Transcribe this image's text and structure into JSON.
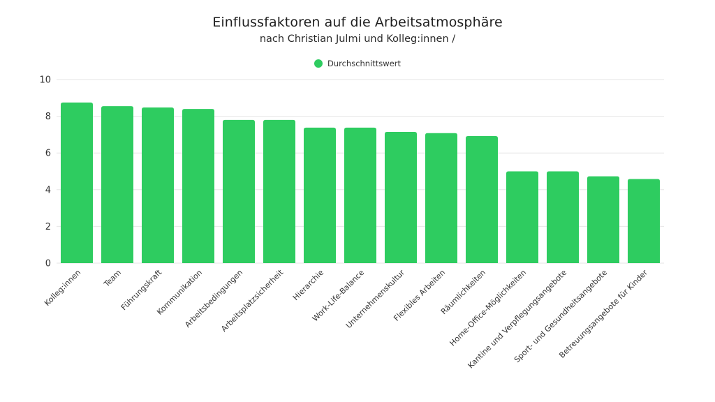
{
  "chart_data": {
    "type": "bar",
    "title": "Einflussfaktoren auf die Arbeitsatmosphäre",
    "subtitle": "nach Christian Julmi und Kolleg:innen /",
    "xlabel": "",
    "ylabel": "",
    "ylim": [
      0,
      10
    ],
    "yticks": [
      0,
      2,
      4,
      6,
      8,
      10
    ],
    "grid": true,
    "legend_position": "top-center",
    "categories": [
      "Kolleg:innen",
      "Team",
      "Führungskraft",
      "Kommunikation",
      "Arbeitsbedingungen",
      "Arbeitsplatzsicherheit",
      "Hierarchie",
      "Work-Life-Balance",
      "Unternehmenskultur",
      "Flexibles Arbeiten",
      "Räumlichkeiten",
      "Home-Office-Möglichkeiten",
      "Kantine und Verpflegungsangebote",
      "Sport- und Gesundheitsangebote",
      "Betreuungsangebote für Kinder"
    ],
    "series": [
      {
        "name": "Durchschnittswert",
        "color": "#2ecc60",
        "values": [
          8.75,
          8.55,
          8.48,
          8.4,
          7.8,
          7.8,
          7.38,
          7.38,
          7.15,
          7.08,
          6.92,
          5.0,
          5.0,
          4.73,
          4.58
        ]
      }
    ]
  },
  "colors": {
    "bar": "#2ecc60",
    "grid": "#e6e6e6"
  }
}
